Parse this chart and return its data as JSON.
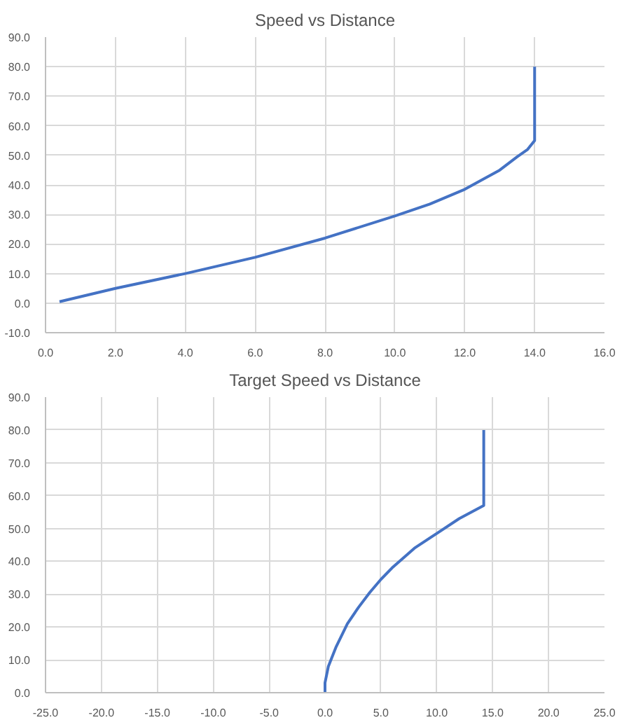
{
  "chart_data": [
    {
      "type": "line",
      "title": "Speed vs Distance",
      "x": [
        0.4,
        2,
        4,
        6,
        8,
        10,
        11,
        12,
        13,
        13.5,
        13.8,
        14,
        14
      ],
      "series": [
        {
          "color": "#4472c4",
          "values": [
            0.5,
            5,
            10,
            15.5,
            22,
            29.5,
            33.5,
            38.5,
            45,
            49.5,
            52,
            55,
            80
          ]
        }
      ],
      "xlim": [
        0,
        16
      ],
      "xticks": [
        {
          "value": 0,
          "label": "0.0"
        },
        {
          "value": 2,
          "label": "2.0"
        },
        {
          "value": 4,
          "label": "4.0"
        },
        {
          "value": 6,
          "label": "6.0"
        },
        {
          "value": 8,
          "label": "8.0"
        },
        {
          "value": 10,
          "label": "10.0"
        },
        {
          "value": 12,
          "label": "12.0"
        },
        {
          "value": 14,
          "label": "14.0"
        },
        {
          "value": 16,
          "label": "16.0"
        }
      ],
      "ylim": [
        -10,
        90
      ],
      "yticks": [
        {
          "value": -10,
          "label": "-10.0"
        },
        {
          "value": 0,
          "label": "0.0"
        },
        {
          "value": 10,
          "label": "10.0"
        },
        {
          "value": 20,
          "label": "20.0"
        },
        {
          "value": 30,
          "label": "30.0"
        },
        {
          "value": 40,
          "label": "40.0"
        },
        {
          "value": 50,
          "label": "50.0"
        },
        {
          "value": 60,
          "label": "60.0"
        },
        {
          "value": 70,
          "label": "70.0"
        },
        {
          "value": 80,
          "label": "80.0"
        },
        {
          "value": 90,
          "label": "90.0"
        }
      ],
      "grid": true
    },
    {
      "type": "line",
      "title": "Target Speed vs Distance",
      "x": [
        0,
        0,
        0.3,
        1,
        2,
        3,
        4,
        5,
        6,
        8,
        10,
        12,
        14.2,
        14.2
      ],
      "series": [
        {
          "color": "#4472c4",
          "values": [
            0,
            3,
            8,
            14,
            21,
            26,
            30.5,
            34.5,
            38,
            44,
            48.5,
            53,
            57,
            80
          ]
        }
      ],
      "xlim": [
        -25,
        25
      ],
      "xticks": [
        {
          "value": -25,
          "label": "-25.0"
        },
        {
          "value": -20,
          "label": "-20.0"
        },
        {
          "value": -15,
          "label": "-15.0"
        },
        {
          "value": -10,
          "label": "-10.0"
        },
        {
          "value": -5,
          "label": "-5.0"
        },
        {
          "value": 0,
          "label": "0.0"
        },
        {
          "value": 5,
          "label": "5.0"
        },
        {
          "value": 10,
          "label": "10.0"
        },
        {
          "value": 15,
          "label": "15.0"
        },
        {
          "value": 20,
          "label": "20.0"
        },
        {
          "value": 25,
          "label": "25.0"
        }
      ],
      "ylim": [
        0,
        90
      ],
      "yticks": [
        {
          "value": 0,
          "label": "0.0"
        },
        {
          "value": 10,
          "label": "10.0"
        },
        {
          "value": 20,
          "label": "20.0"
        },
        {
          "value": 30,
          "label": "30.0"
        },
        {
          "value": 40,
          "label": "40.0"
        },
        {
          "value": 50,
          "label": "50.0"
        },
        {
          "value": 60,
          "label": "60.0"
        },
        {
          "value": 70,
          "label": "70.0"
        },
        {
          "value": 80,
          "label": "80.0"
        },
        {
          "value": 90,
          "label": "90.0"
        }
      ],
      "grid": true
    }
  ]
}
